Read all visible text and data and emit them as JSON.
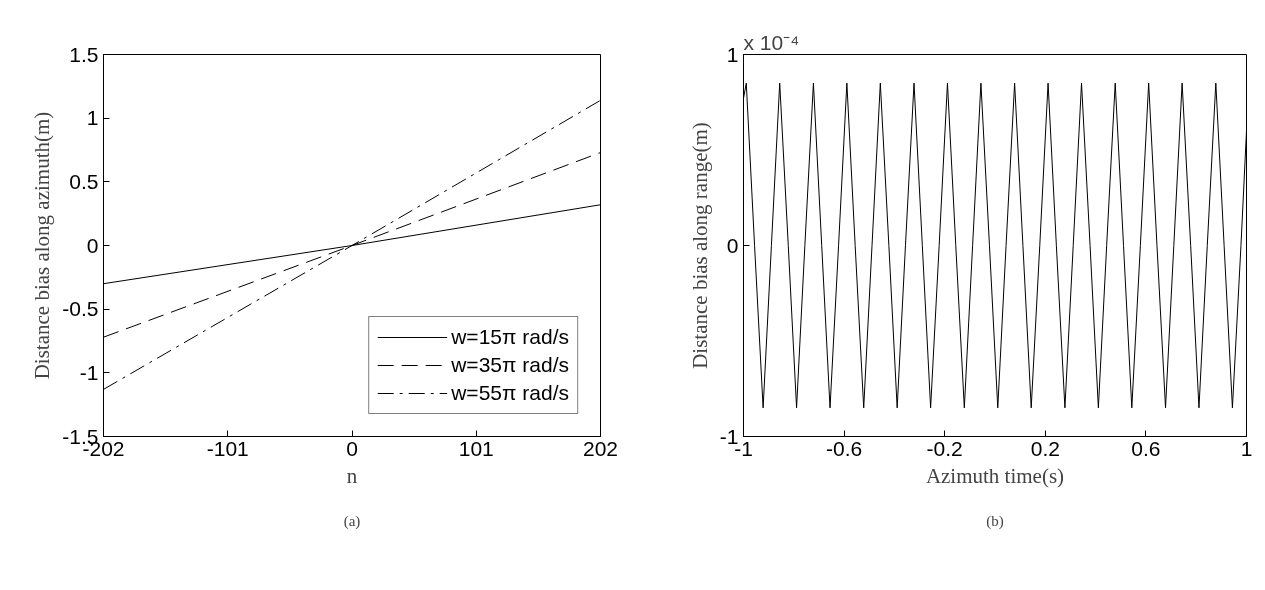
{
  "chart_data": [
    {
      "type": "line",
      "xlabel": "n",
      "ylabel": "Distance bias along azimuth(m)",
      "xlim": [
        -202,
        202
      ],
      "xticks": [
        -202,
        -101,
        0,
        101,
        202
      ],
      "ylim": [
        -1.5,
        1.5
      ],
      "yticks": [
        -1.5,
        -1,
        -0.5,
        0,
        0.5,
        1,
        1.5
      ],
      "grid": false,
      "legend": "bottom right",
      "annotations": [
        "(a)"
      ],
      "series": [
        {
          "name": "w=15π rad/s",
          "color": "#000000",
          "line_style": "solid",
          "x": [
            -202,
            0,
            202
          ],
          "values": [
            -0.3,
            0,
            0.32
          ]
        },
        {
          "name": "w=35π rad/s",
          "color": "#000000",
          "line_style": "dashed",
          "x": [
            -202,
            0,
            202
          ],
          "values": [
            -0.72,
            0,
            0.73
          ]
        },
        {
          "name": "w=55π rad/s",
          "color": "#000000",
          "line_style": "dashdot",
          "x": [
            -202,
            0,
            202
          ],
          "values": [
            -1.13,
            0,
            1.14
          ]
        }
      ]
    },
    {
      "type": "line",
      "xlabel": "Azimuth time(s)",
      "ylabel": "Distance bias along range(m)",
      "xlim": [
        -1,
        1
      ],
      "xticks": [
        -1,
        -0.6,
        -0.2,
        0.2,
        0.6,
        1
      ],
      "ylim": [
        -1,
        1
      ],
      "yticks": [
        -1,
        0,
        1
      ],
      "grid": false,
      "legend": false,
      "annotations": [
        "x 10⁻⁴",
        "(b)"
      ],
      "series": [
        {
          "color": "#000000",
          "line_style": "solid",
          "x": [
            -1,
            -0.989,
            -0.956,
            -0.922,
            -0.889,
            -0.856,
            -0.822,
            -0.789,
            -0.756,
            -0.722,
            -0.689,
            -0.656,
            -0.622,
            -0.589,
            -0.556,
            -0.522,
            -0.489,
            -0.456,
            -0.422,
            -0.389,
            -0.356,
            -0.322,
            -0.289,
            -0.256,
            -0.222,
            -0.189,
            -0.156,
            -0.122,
            -0.089,
            -0.056,
            -0.022,
            0.011,
            0.044,
            0.078,
            0.111,
            0.144,
            0.178,
            0.211,
            0.244,
            0.278,
            0.311,
            0.344,
            0.378,
            0.411,
            0.444,
            0.478,
            0.511,
            0.544,
            0.578,
            0.611,
            0.644,
            0.678,
            0.711,
            0.744,
            0.778,
            0.811,
            0.844,
            0.878,
            0.911,
            0.944,
            0.978,
            1
          ],
          "values": [
            0.77,
            0.85,
            0,
            -0.85,
            0,
            0.85,
            0,
            -0.85,
            0,
            0.85,
            0,
            -0.85,
            0,
            0.85,
            0,
            -0.85,
            0,
            0.85,
            0,
            -0.85,
            0,
            0.85,
            0,
            -0.85,
            0,
            0.85,
            0,
            -0.85,
            0,
            0.85,
            0,
            -0.85,
            0,
            0.85,
            0,
            -0.85,
            0,
            0.85,
            0,
            -0.85,
            0,
            0.85,
            0,
            -0.85,
            0,
            0.85,
            0,
            -0.85,
            0,
            0.85,
            0,
            -0.85,
            0,
            0.85,
            0,
            -0.85,
            0,
            0.85,
            0,
            -0.85,
            0,
            0.6
          ]
        }
      ]
    }
  ]
}
